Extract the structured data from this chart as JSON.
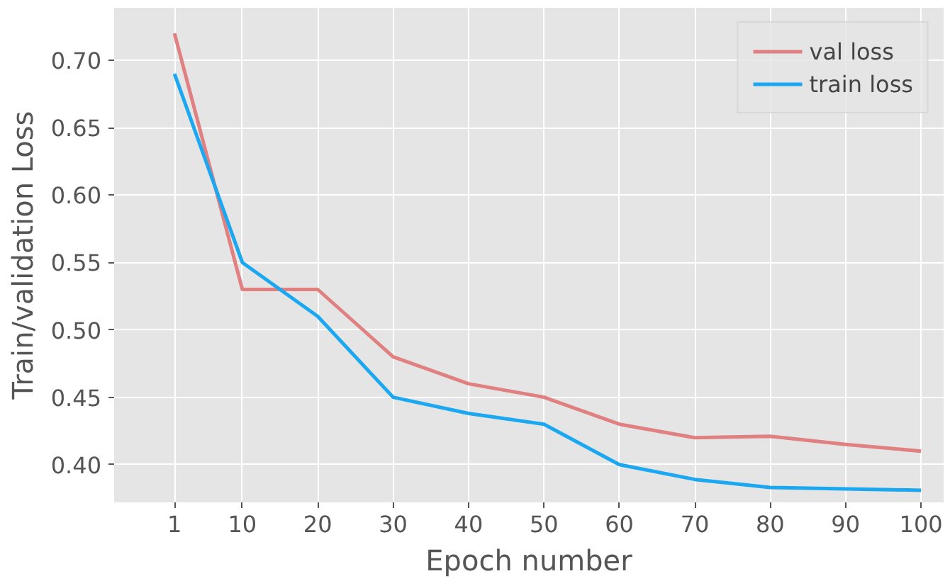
{
  "chart_data": {
    "type": "line",
    "xlabel": "Epoch number",
    "ylabel": "Train/validation Loss",
    "x": [
      1,
      10,
      20,
      30,
      40,
      50,
      60,
      70,
      80,
      90,
      100
    ],
    "series": [
      {
        "name": "val loss",
        "color": "#e08080",
        "values": [
          0.72,
          0.53,
          0.53,
          0.48,
          0.46,
          0.45,
          0.43,
          0.42,
          0.421,
          0.415,
          0.41
        ]
      },
      {
        "name": "train loss",
        "color": "#1ba8f0",
        "values": [
          0.69,
          0.55,
          0.51,
          0.45,
          0.438,
          0.43,
          0.4,
          0.389,
          0.383,
          0.382,
          0.381
        ]
      }
    ],
    "xlim": [
      -7,
      103
    ],
    "xticks": [
      1,
      10,
      20,
      30,
      40,
      50,
      60,
      70,
      80,
      90,
      100
    ],
    "ylim": [
      0.372,
      0.739
    ],
    "yticks": [
      {
        "value": 0.4,
        "label": "0.40"
      },
      {
        "value": 0.45,
        "label": "0.45"
      },
      {
        "value": 0.5,
        "label": "0.50"
      },
      {
        "value": 0.55,
        "label": "0.55"
      },
      {
        "value": 0.6,
        "label": "0.60"
      },
      {
        "value": 0.65,
        "label": "0.65"
      },
      {
        "value": 0.7,
        "label": "0.70"
      }
    ],
    "grid": true,
    "legend": "top right",
    "line_style": "solid",
    "marker": "none"
  }
}
